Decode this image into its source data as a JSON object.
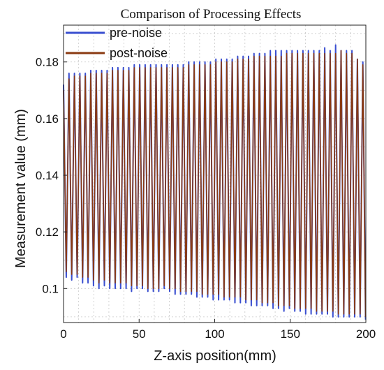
{
  "chart_data": {
    "type": "line",
    "title": "Comparison of Processing Effects",
    "xlabel": "Z-axis position(mm)",
    "ylabel": "Measurement value (mm)",
    "xlim": [
      0,
      200
    ],
    "ylim": [
      0.088,
      0.193
    ],
    "xticks": [
      0,
      50,
      100,
      150,
      200
    ],
    "yticks": [
      0.1,
      0.12,
      0.14,
      0.16,
      0.18
    ],
    "xtick_labels": [
      "0",
      "50",
      "100",
      "150",
      "200"
    ],
    "ytick_labels": [
      "0.1",
      "0.12",
      "0.14",
      "0.16",
      "0.18"
    ],
    "grid": true,
    "legend_position": "top-left",
    "series": [
      {
        "name": "pre-noise",
        "color": "#3a4fd0",
        "x": [
          0,
          1.8,
          3.6,
          5.4,
          7.2,
          9,
          10.8,
          12.6,
          14.4,
          16.2,
          18,
          19.8,
          21.6,
          23.4,
          25.2,
          27,
          28.8,
          30.6,
          32.4,
          34.2,
          36,
          37.8,
          39.6,
          41.4,
          43.2,
          45,
          46.8,
          48.6,
          50.4,
          52.2,
          54,
          55.8,
          57.6,
          59.4,
          61.2,
          63,
          64.8,
          66.6,
          68.4,
          70.2,
          72,
          73.8,
          75.6,
          77.4,
          79.2,
          81,
          82.8,
          84.6,
          86.4,
          88.2,
          90,
          91.8,
          93.6,
          95.4,
          97.2,
          99,
          100.8,
          102.6,
          104.4,
          106.2,
          108,
          109.8,
          111.6,
          113.4,
          115.2,
          117,
          118.8,
          120.6,
          122.4,
          124.2,
          126,
          127.8,
          129.6,
          131.4,
          133.2,
          135,
          136.8,
          138.6,
          140.4,
          142.2,
          144,
          145.8,
          147.6,
          149.4,
          151.2,
          153,
          154.8,
          156.6,
          158.4,
          160.2,
          162,
          163.8,
          165.6,
          167.4,
          169.2,
          171,
          172.8,
          174.6,
          176.4,
          178.2,
          180,
          181.8,
          183.6,
          185.4,
          187.2,
          189,
          190.8,
          192.6,
          194.4,
          196.2,
          198,
          199.8
        ],
        "values": [
          0.172,
          0.104,
          0.176,
          0.103,
          0.176,
          0.104,
          0.176,
          0.102,
          0.176,
          0.102,
          0.177,
          0.101,
          0.177,
          0.1,
          0.177,
          0.101,
          0.177,
          0.1,
          0.178,
          0.1,
          0.178,
          0.1,
          0.178,
          0.1,
          0.178,
          0.099,
          0.179,
          0.1,
          0.179,
          0.1,
          0.179,
          0.099,
          0.179,
          0.099,
          0.179,
          0.099,
          0.179,
          0.1,
          0.179,
          0.099,
          0.179,
          0.098,
          0.179,
          0.098,
          0.179,
          0.098,
          0.18,
          0.098,
          0.18,
          0.097,
          0.18,
          0.097,
          0.18,
          0.097,
          0.18,
          0.096,
          0.181,
          0.096,
          0.181,
          0.096,
          0.181,
          0.096,
          0.181,
          0.095,
          0.182,
          0.095,
          0.182,
          0.095,
          0.182,
          0.094,
          0.183,
          0.094,
          0.183,
          0.094,
          0.183,
          0.094,
          0.184,
          0.093,
          0.184,
          0.093,
          0.184,
          0.092,
          0.184,
          0.093,
          0.184,
          0.092,
          0.184,
          0.092,
          0.184,
          0.091,
          0.184,
          0.091,
          0.184,
          0.091,
          0.184,
          0.091,
          0.185,
          0.091,
          0.184,
          0.09,
          0.186,
          0.09,
          0.184,
          0.09,
          0.184,
          0.09,
          0.184,
          0.09,
          0.181,
          0.09,
          0.18,
          0.089
        ]
      },
      {
        "name": "post-noise",
        "color": "#8a3a12",
        "x": [
          0,
          1.8,
          3.6,
          5.4,
          7.2,
          9,
          10.8,
          12.6,
          14.4,
          16.2,
          18,
          19.8,
          21.6,
          23.4,
          25.2,
          27,
          28.8,
          30.6,
          32.4,
          34.2,
          36,
          37.8,
          39.6,
          41.4,
          43.2,
          45,
          46.8,
          48.6,
          50.4,
          52.2,
          54,
          55.8,
          57.6,
          59.4,
          61.2,
          63,
          64.8,
          66.6,
          68.4,
          70.2,
          72,
          73.8,
          75.6,
          77.4,
          79.2,
          81,
          82.8,
          84.6,
          86.4,
          88.2,
          90,
          91.8,
          93.6,
          95.4,
          97.2,
          99,
          100.8,
          102.6,
          104.4,
          106.2,
          108,
          109.8,
          111.6,
          113.4,
          115.2,
          117,
          118.8,
          120.6,
          122.4,
          124.2,
          126,
          127.8,
          129.6,
          131.4,
          133.2,
          135,
          136.8,
          138.6,
          140.4,
          142.2,
          144,
          145.8,
          147.6,
          149.4,
          151.2,
          153,
          154.8,
          156.6,
          158.4,
          160.2,
          162,
          163.8,
          165.6,
          167.4,
          169.2,
          171,
          172.8,
          174.6,
          176.4,
          178.2,
          180,
          181.8,
          183.6,
          185.4,
          187.2,
          189,
          190.8,
          192.6,
          194.4,
          196.2,
          198,
          199.8
        ],
        "values": [
          0.17,
          0.106,
          0.174,
          0.105,
          0.175,
          0.105,
          0.175,
          0.104,
          0.175,
          0.104,
          0.176,
          0.103,
          0.176,
          0.102,
          0.176,
          0.103,
          0.176,
          0.102,
          0.177,
          0.102,
          0.177,
          0.102,
          0.177,
          0.102,
          0.177,
          0.101,
          0.178,
          0.101,
          0.178,
          0.101,
          0.178,
          0.1,
          0.178,
          0.1,
          0.178,
          0.1,
          0.178,
          0.101,
          0.178,
          0.1,
          0.178,
          0.1,
          0.178,
          0.099,
          0.178,
          0.099,
          0.179,
          0.099,
          0.179,
          0.099,
          0.179,
          0.098,
          0.179,
          0.098,
          0.179,
          0.098,
          0.18,
          0.098,
          0.18,
          0.097,
          0.18,
          0.097,
          0.18,
          0.097,
          0.181,
          0.097,
          0.181,
          0.096,
          0.181,
          0.096,
          0.182,
          0.096,
          0.182,
          0.095,
          0.182,
          0.095,
          0.182,
          0.095,
          0.182,
          0.094,
          0.182,
          0.094,
          0.183,
          0.094,
          0.183,
          0.093,
          0.183,
          0.093,
          0.183,
          0.093,
          0.183,
          0.093,
          0.183,
          0.092,
          0.183,
          0.092,
          0.183,
          0.092,
          0.183,
          0.092,
          0.183,
          0.091,
          0.184,
          0.091,
          0.183,
          0.091,
          0.183,
          0.091,
          0.181,
          0.091,
          0.179,
          0.09
        ]
      }
    ]
  }
}
